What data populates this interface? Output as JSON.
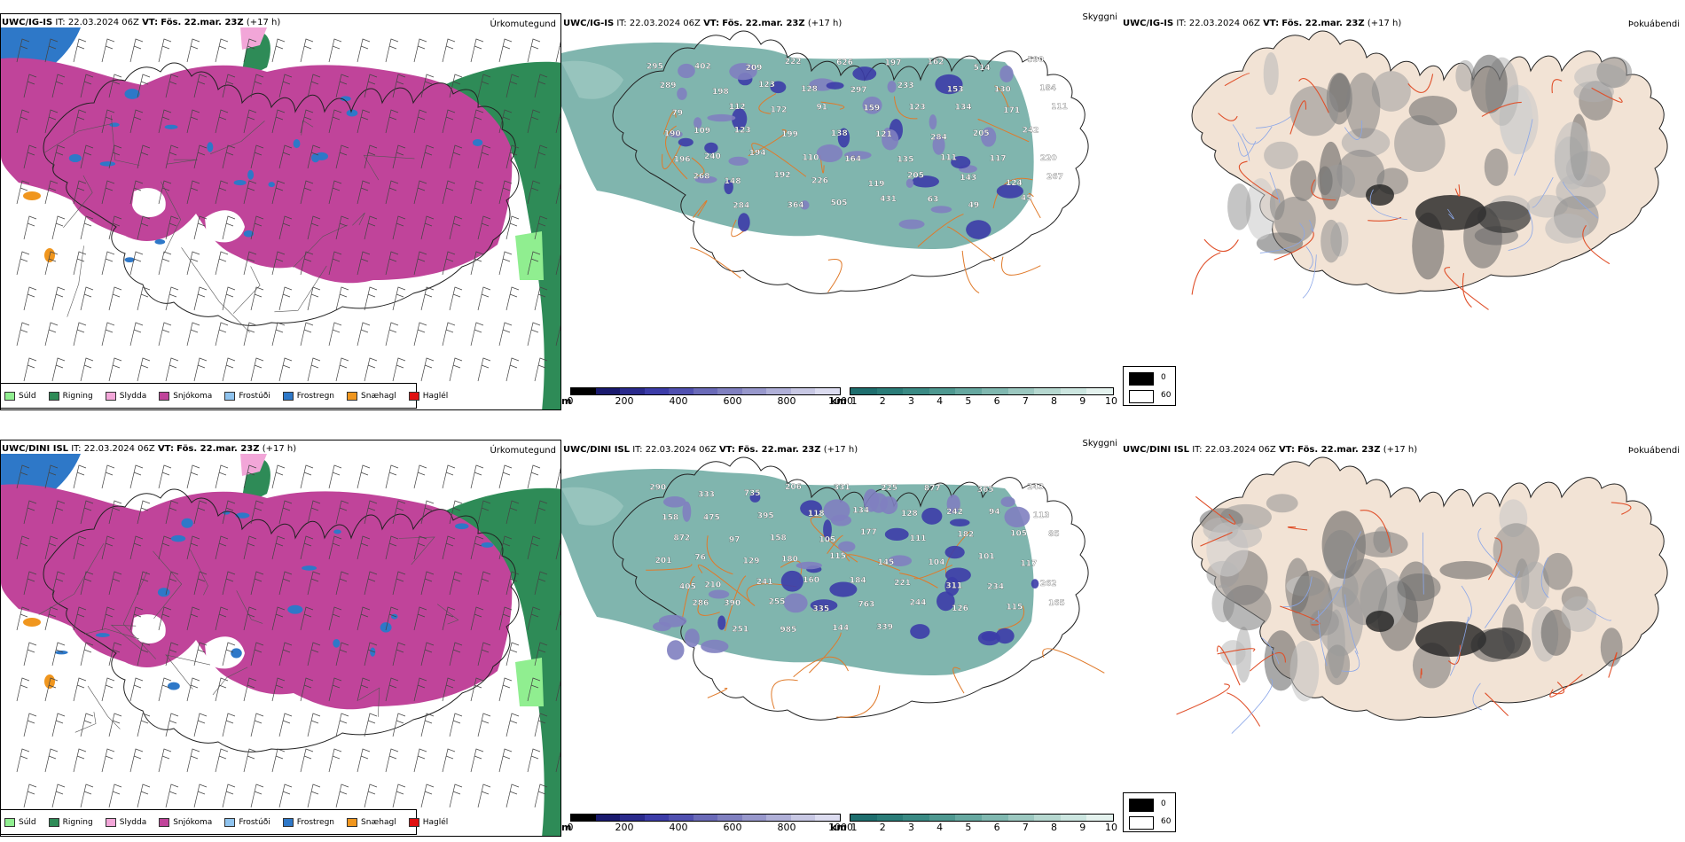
{
  "rows": [
    {
      "model": "UWC/IG-IS",
      "it_label": "IT:",
      "it_value": "22.03.2024 06Z",
      "vt_label": "VT:",
      "vt_value": "Fös. 22.mar. 23Z",
      "lead": "(+17 h)",
      "precip_title": "Úrkomutegund",
      "vis_title": "Skyggni",
      "fog_title": "Þokuábendi",
      "snow_labels": [
        "295",
        "402",
        "209",
        "222",
        "626",
        "197",
        "162",
        "514",
        "590",
        "289",
        "198",
        "123",
        "128",
        "297",
        "233",
        "153",
        "130",
        "184",
        "79",
        "112",
        "172",
        "91",
        "159",
        "123",
        "134",
        "171",
        "111",
        "109",
        "123",
        "199",
        "138",
        "121",
        "284",
        "205",
        "242",
        "190",
        "240",
        "194",
        "110",
        "164",
        "135",
        "111",
        "117",
        "220",
        "196",
        "148",
        "192",
        "226",
        "119",
        "205",
        "143",
        "124",
        "267",
        "268",
        "284",
        "364",
        "505",
        "431",
        "63",
        "49",
        "45"
      ]
    },
    {
      "model": "UWC/DINI ISL",
      "it_label": "IT:",
      "it_value": "22.03.2024 06Z",
      "vt_label": "VT:",
      "vt_value": "Fös. 22.mar. 23Z",
      "lead": "(+17 h)",
      "precip_title": "Úrkomutegund",
      "vis_title": "Skyggni",
      "fog_title": "Þokuábendi",
      "snow_labels": [
        "290",
        "333",
        "735",
        "206",
        "331",
        "225",
        "877",
        "365",
        "243",
        "158",
        "475",
        "395",
        "118",
        "134",
        "128",
        "242",
        "94",
        "113",
        "872",
        "97",
        "158",
        "105",
        "177",
        "111",
        "182",
        "105",
        "85",
        "76",
        "129",
        "180",
        "115",
        "145",
        "104",
        "101",
        "117",
        "201",
        "210",
        "241",
        "160",
        "184",
        "221",
        "311",
        "234",
        "262",
        "405",
        "390",
        "255",
        "335",
        "763",
        "244",
        "126",
        "115",
        "165",
        "286",
        "251",
        "985",
        "144",
        "339"
      ]
    }
  ],
  "precip_legend": [
    {
      "label": "Súld",
      "color": "#90ee90"
    },
    {
      "label": "Rigning",
      "color": "#2e8b57"
    },
    {
      "label": "Slydda",
      "color": "#f2a6d8"
    },
    {
      "label": "Snjókoma",
      "color": "#c0449a"
    },
    {
      "label": "Frostúði",
      "color": "#8fc3ee"
    },
    {
      "label": "Frostregn",
      "color": "#2e78c8"
    },
    {
      "label": "Snæhagl",
      "color": "#f0961e"
    },
    {
      "label": "Haglél",
      "color": "#e01010"
    }
  ],
  "snow_scale": {
    "unit": "m",
    "ticks": [
      "0",
      "200",
      "400",
      "600",
      "800",
      "1000"
    ],
    "colors": [
      "#000000",
      "#1a1a6e",
      "#2a2a8c",
      "#3c3ca8",
      "#5050b0",
      "#6a6ab8",
      "#8080c0",
      "#9898cc",
      "#b0b0d8",
      "#c8c8e4",
      "#dcdcf0"
    ]
  },
  "vis_scale": {
    "unit": "km",
    "ticks": [
      "1",
      "2",
      "3",
      "4",
      "5",
      "6",
      "7",
      "8",
      "9",
      "10"
    ],
    "colors": [
      "#1e6e6e",
      "#2a7c78",
      "#3a8a84",
      "#4e9890",
      "#66a8a0",
      "#80b8b0",
      "#9cc8c0",
      "#b6d8d0",
      "#cce6e0",
      "#e4f2ee"
    ]
  },
  "fog_key": {
    "high": "0",
    "low": "60"
  }
}
